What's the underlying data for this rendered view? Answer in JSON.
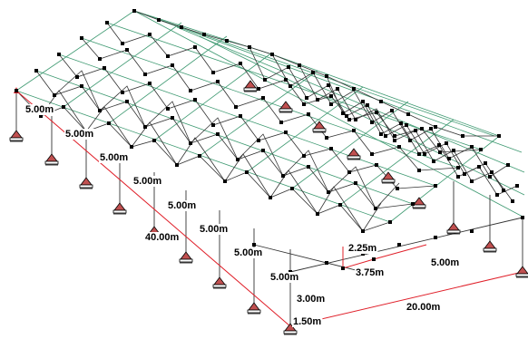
{
  "colors": {
    "top_chord": "#3f9a72",
    "web_member": "#333333",
    "node": "#000000",
    "dimension": "#e0202a",
    "support_fill": "#c05050",
    "support_edge": "#000000",
    "background": "#ffffff"
  },
  "labels": {
    "bay_1": "5.00m",
    "bay_2": "5.00m",
    "bay_3": "5.00m",
    "bay_4": "5.00m",
    "bay_5": "5.00m",
    "bay_6": "5.00m",
    "bay_7": "5.00m",
    "bay_8": "5.00m",
    "total_length": "40.00m",
    "total_width": "20.00m",
    "column_height": "3.00m",
    "base_height": "1.50m",
    "roof_rise": "2.25m",
    "sub_span": "3.75m",
    "end_bay": "5.00m"
  },
  "icons": {
    "support": "pinned-support-icon"
  }
}
